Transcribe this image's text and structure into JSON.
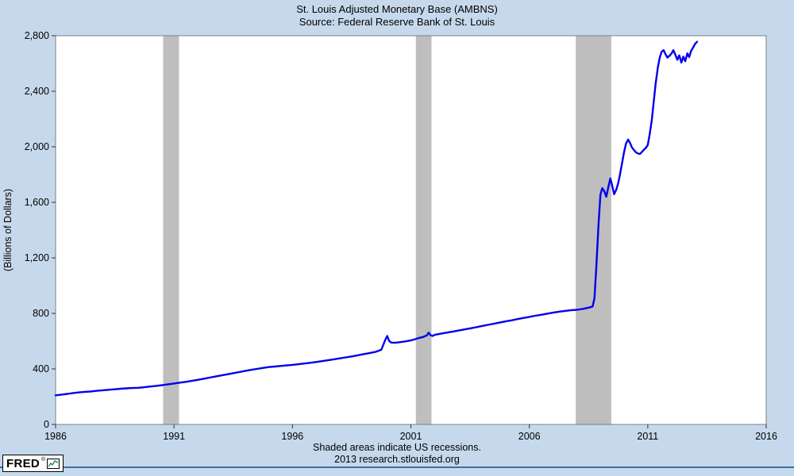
{
  "chart_data": {
    "type": "line",
    "title": "St. Louis Adjusted Monetary Base (AMBNS)",
    "subtitle": "Source: Federal Reserve Bank of St. Louis",
    "xlabel": "",
    "ylabel": "(Billions of Dollars)",
    "xlim": [
      1986,
      2016
    ],
    "ylim": [
      0,
      2800
    ],
    "xticks": [
      1986,
      1991,
      1996,
      2001,
      2006,
      2011,
      2016
    ],
    "yticks": [
      0,
      400,
      800,
      1200,
      1600,
      2000,
      2400,
      2800
    ],
    "grid": false,
    "legend": "none",
    "recessions": [
      [
        1990.54,
        1991.21
      ],
      [
        2001.21,
        2001.87
      ],
      [
        2007.96,
        2009.46
      ]
    ],
    "series": [
      {
        "name": "St. Louis Adjusted Monetary Base (AMBNS)",
        "color": "#0000ee",
        "points": [
          [
            1986.0,
            210
          ],
          [
            1986.25,
            215
          ],
          [
            1986.5,
            220
          ],
          [
            1986.75,
            226
          ],
          [
            1987.0,
            231
          ],
          [
            1987.25,
            235
          ],
          [
            1987.5,
            238
          ],
          [
            1987.75,
            242
          ],
          [
            1988.0,
            246
          ],
          [
            1988.25,
            250
          ],
          [
            1988.5,
            253
          ],
          [
            1988.75,
            257
          ],
          [
            1989.0,
            260
          ],
          [
            1989.25,
            262
          ],
          [
            1989.5,
            264
          ],
          [
            1989.75,
            268
          ],
          [
            1990.0,
            273
          ],
          [
            1990.25,
            278
          ],
          [
            1990.5,
            283
          ],
          [
            1990.75,
            289
          ],
          [
            1991.0,
            295
          ],
          [
            1991.25,
            301
          ],
          [
            1991.5,
            307
          ],
          [
            1991.75,
            314
          ],
          [
            1992.0,
            321
          ],
          [
            1992.25,
            329
          ],
          [
            1992.5,
            337
          ],
          [
            1992.75,
            345
          ],
          [
            1993.0,
            353
          ],
          [
            1993.25,
            361
          ],
          [
            1993.5,
            369
          ],
          [
            1993.75,
            377
          ],
          [
            1994.0,
            385
          ],
          [
            1994.25,
            393
          ],
          [
            1994.5,
            400
          ],
          [
            1994.75,
            407
          ],
          [
            1995.0,
            413
          ],
          [
            1995.25,
            417
          ],
          [
            1995.5,
            421
          ],
          [
            1995.75,
            425
          ],
          [
            1996.0,
            429
          ],
          [
            1996.25,
            434
          ],
          [
            1996.5,
            439
          ],
          [
            1996.75,
            444
          ],
          [
            1997.0,
            450
          ],
          [
            1997.25,
            456
          ],
          [
            1997.5,
            462
          ],
          [
            1997.75,
            469
          ],
          [
            1998.0,
            476
          ],
          [
            1998.25,
            483
          ],
          [
            1998.5,
            490
          ],
          [
            1998.75,
            498
          ],
          [
            1999.0,
            506
          ],
          [
            1999.25,
            514
          ],
          [
            1999.5,
            522
          ],
          [
            1999.75,
            538
          ],
          [
            1999.92,
            610
          ],
          [
            2000.0,
            637
          ],
          [
            2000.08,
            601
          ],
          [
            2000.17,
            590
          ],
          [
            2000.33,
            588
          ],
          [
            2000.5,
            592
          ],
          [
            2000.75,
            598
          ],
          [
            2001.0,
            605
          ],
          [
            2001.17,
            614
          ],
          [
            2001.33,
            622
          ],
          [
            2001.5,
            629
          ],
          [
            2001.67,
            641
          ],
          [
            2001.75,
            661
          ],
          [
            2001.83,
            643
          ],
          [
            2001.92,
            637
          ],
          [
            2002.0,
            645
          ],
          [
            2002.25,
            653
          ],
          [
            2002.5,
            661
          ],
          [
            2002.75,
            668
          ],
          [
            2003.0,
            676
          ],
          [
            2003.25,
            684
          ],
          [
            2003.5,
            692
          ],
          [
            2003.75,
            700
          ],
          [
            2004.0,
            709
          ],
          [
            2004.25,
            717
          ],
          [
            2004.5,
            725
          ],
          [
            2004.75,
            734
          ],
          [
            2005.0,
            742
          ],
          [
            2005.25,
            750
          ],
          [
            2005.5,
            759
          ],
          [
            2005.75,
            767
          ],
          [
            2006.0,
            775
          ],
          [
            2006.25,
            783
          ],
          [
            2006.5,
            790
          ],
          [
            2006.75,
            798
          ],
          [
            2007.0,
            805
          ],
          [
            2007.25,
            812
          ],
          [
            2007.5,
            818
          ],
          [
            2007.75,
            822
          ],
          [
            2008.0,
            826
          ],
          [
            2008.25,
            832
          ],
          [
            2008.5,
            841
          ],
          [
            2008.67,
            849
          ],
          [
            2008.75,
            908
          ],
          [
            2008.83,
            1140
          ],
          [
            2008.92,
            1440
          ],
          [
            2009.0,
            1655
          ],
          [
            2009.08,
            1702
          ],
          [
            2009.17,
            1678
          ],
          [
            2009.25,
            1640
          ],
          [
            2009.33,
            1705
          ],
          [
            2009.42,
            1772
          ],
          [
            2009.5,
            1718
          ],
          [
            2009.58,
            1658
          ],
          [
            2009.67,
            1692
          ],
          [
            2009.75,
            1736
          ],
          [
            2009.83,
            1802
          ],
          [
            2009.92,
            1886
          ],
          [
            2010.0,
            1962
          ],
          [
            2010.08,
            2022
          ],
          [
            2010.17,
            2052
          ],
          [
            2010.25,
            2028
          ],
          [
            2010.33,
            1996
          ],
          [
            2010.42,
            1976
          ],
          [
            2010.5,
            1960
          ],
          [
            2010.58,
            1952
          ],
          [
            2010.67,
            1948
          ],
          [
            2010.75,
            1962
          ],
          [
            2010.83,
            1978
          ],
          [
            2010.92,
            1992
          ],
          [
            2011.0,
            2012
          ],
          [
            2011.08,
            2088
          ],
          [
            2011.17,
            2192
          ],
          [
            2011.25,
            2322
          ],
          [
            2011.33,
            2452
          ],
          [
            2011.42,
            2566
          ],
          [
            2011.5,
            2640
          ],
          [
            2011.58,
            2682
          ],
          [
            2011.67,
            2696
          ],
          [
            2011.75,
            2666
          ],
          [
            2011.83,
            2642
          ],
          [
            2011.92,
            2656
          ],
          [
            2012.0,
            2671
          ],
          [
            2012.08,
            2696
          ],
          [
            2012.17,
            2661
          ],
          [
            2012.25,
            2626
          ],
          [
            2012.33,
            2659
          ],
          [
            2012.42,
            2606
          ],
          [
            2012.5,
            2649
          ],
          [
            2012.58,
            2616
          ],
          [
            2012.67,
            2673
          ],
          [
            2012.75,
            2646
          ],
          [
            2012.83,
            2691
          ],
          [
            2012.92,
            2716
          ],
          [
            2013.0,
            2742
          ],
          [
            2013.08,
            2756
          ]
        ]
      }
    ],
    "annotations": [
      "Shaded areas indicate US recessions."
    ]
  },
  "footer": {
    "note": "Shaded areas indicate US recessions.",
    "credit": "2013 research.stlouisfed.org"
  },
  "logo": {
    "text": "FRED",
    "reg": "®",
    "icon": "sparkline-chart-icon"
  },
  "colors": {
    "background": "#c6d9ec",
    "plot_background": "#ffffff",
    "line": "#0000ee",
    "recession": "#bebebe",
    "axis": "#7f7f7f",
    "tick": "#333333",
    "text": "#000000",
    "footer_rule": "#3e6da5"
  }
}
